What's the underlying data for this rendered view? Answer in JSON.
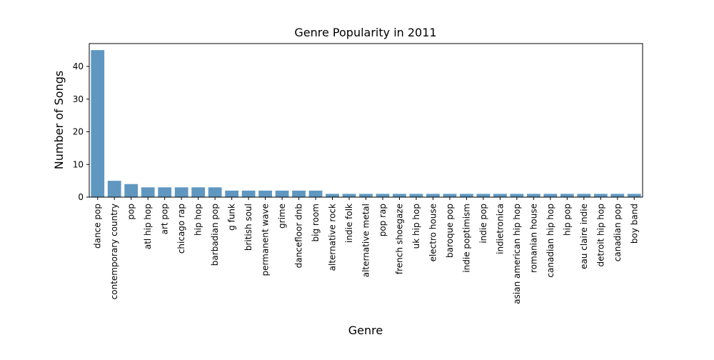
{
  "chart_data": {
    "type": "bar",
    "title": "Genre Popularity in 2011",
    "xlabel": "Genre",
    "ylabel": "Number of Songs",
    "ylim": [
      0,
      47
    ],
    "yticks": [
      0,
      10,
      20,
      30,
      40
    ],
    "grid": false,
    "bar_color": "#5f97c1",
    "categories": [
      "dance pop",
      "contemporary country",
      "pop",
      "atl hip hop",
      "art pop",
      "chicago rap",
      "hip hop",
      "barbadian pop",
      "g funk",
      "british soul",
      "permanent wave",
      "grime",
      "dancefloor dnb",
      "big room",
      "alternative rock",
      "indie folk",
      "alternative metal",
      "pop rap",
      "french shoegaze",
      "uk hip hop",
      "electro house",
      "baroque pop",
      "indie poptimism",
      "indie pop",
      "indietronica",
      "asian american hip hop",
      "romanian house",
      "canadian hip hop",
      "hip pop",
      "eau claire indie",
      "detroit hip hop",
      "canadian pop",
      "boy band"
    ],
    "values": [
      45,
      5,
      4,
      3,
      3,
      3,
      3,
      3,
      2,
      2,
      2,
      2,
      2,
      2,
      1,
      1,
      1,
      1,
      1,
      1,
      1,
      1,
      1,
      1,
      1,
      1,
      1,
      1,
      1,
      1,
      1,
      1,
      1
    ]
  }
}
